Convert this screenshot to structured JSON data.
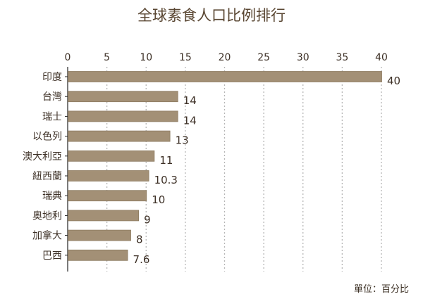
{
  "chart_data": {
    "type": "bar",
    "orientation": "horizontal",
    "title": "全球素食人口比例排行",
    "unit_label": "單位：百分比",
    "categories": [
      "印度",
      "台灣",
      "瑞士",
      "以色列",
      "澳大利亞",
      "紐西蘭",
      "瑞典",
      "奧地利",
      "加拿大",
      "巴西"
    ],
    "values": [
      40,
      14,
      14,
      13,
      11,
      10.3,
      10,
      9,
      8,
      7.6
    ],
    "value_labels": [
      "40",
      "14",
      "14",
      "13",
      "11",
      "10.3",
      "10",
      "9",
      "8",
      "7.6"
    ],
    "xticks": [
      0,
      5,
      10,
      15,
      20,
      25,
      30,
      35,
      40
    ],
    "xtick_labels": [
      "0",
      "5",
      "10",
      "15",
      "20",
      "25",
      "30",
      "35",
      "40"
    ],
    "xlim": [
      0,
      40
    ],
    "grid": "vertical dotted",
    "xaxis_position": "top",
    "bar_color": "#a39076"
  }
}
